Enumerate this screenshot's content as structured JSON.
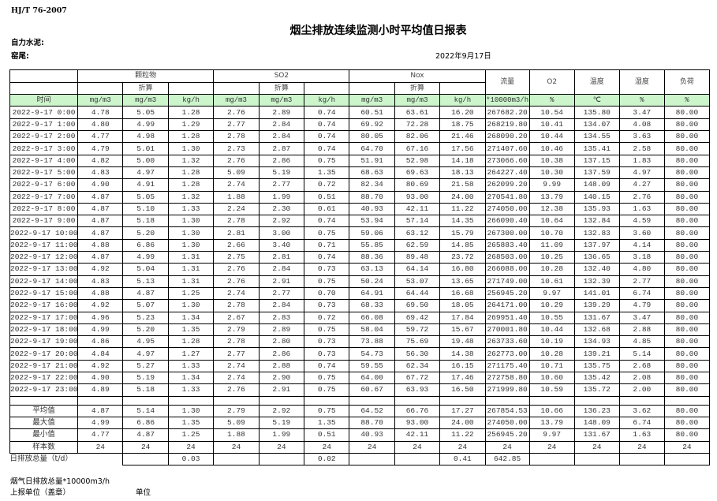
{
  "header": {
    "standard": "HJ/T  76-2007",
    "title": "烟尘排放连续监测小时平均值日报表",
    "company": "自力水泥:",
    "kiln": "窑尾:",
    "date": "2022年9月17日"
  },
  "table": {
    "groups": [
      "颗粒物",
      "SO2",
      "Nox"
    ],
    "converted_label": "折算",
    "single_headers": [
      "流量",
      "O2",
      "温度",
      "湿度",
      "负荷"
    ],
    "units": [
      "时间",
      "mg/m3",
      "mg/m3",
      "kg/h",
      "mg/m3",
      "mg/m3",
      "kg/h",
      "mg/m3",
      "mg/m3",
      "kg/h",
      "*10000m3/h",
      "%",
      "℃",
      "%",
      "%"
    ],
    "accent_color": "#ccf5cc",
    "rows": [
      [
        "2022-9-17  0:00",
        "4.78",
        "5.05",
        "1.28",
        "2.76",
        "2.89",
        "0.74",
        "60.51",
        "63.61",
        "16.20",
        "267682.20",
        "10.54",
        "135.80",
        "3.47",
        "80.00"
      ],
      [
        "2022-9-17  1:00",
        "4.80",
        "4.99",
        "1.29",
        "2.77",
        "2.84",
        "0.74",
        "69.92",
        "72.28",
        "18.75",
        "268219.80",
        "10.41",
        "134.07",
        "4.08",
        "80.00"
      ],
      [
        "2022-9-17  2:00",
        "4.77",
        "4.98",
        "1.28",
        "2.78",
        "2.84",
        "0.74",
        "80.05",
        "82.06",
        "21.46",
        "268090.20",
        "10.44",
        "134.55",
        "3.63",
        "80.00"
      ],
      [
        "2022-9-17  3:00",
        "4.79",
        "5.01",
        "1.30",
        "2.73",
        "2.87",
        "0.74",
        "64.70",
        "67.16",
        "17.56",
        "271407.60",
        "10.46",
        "135.41",
        "2.58",
        "80.00"
      ],
      [
        "2022-9-17  4:00",
        "4.82",
        "5.00",
        "1.32",
        "2.76",
        "2.86",
        "0.75",
        "51.91",
        "52.98",
        "14.18",
        "273066.60",
        "10.38",
        "137.15",
        "1.83",
        "80.00"
      ],
      [
        "2022-9-17  5:00",
        "4.83",
        "4.97",
        "1.28",
        "5.09",
        "5.19",
        "1.35",
        "68.63",
        "69.63",
        "18.13",
        "264227.40",
        "10.30",
        "137.59",
        "4.97",
        "80.00"
      ],
      [
        "2022-9-17  6:00",
        "4.90",
        "4.91",
        "1.28",
        "2.74",
        "2.77",
        "0.72",
        "82.34",
        "80.69",
        "21.58",
        "262099.20",
        "9.99",
        "148.09",
        "4.27",
        "80.00"
      ],
      [
        "2022-9-17  7:00",
        "4.87",
        "5.05",
        "1.32",
        "1.88",
        "1.99",
        "0.51",
        "88.70",
        "93.00",
        "24.00",
        "270541.80",
        "13.79",
        "140.15",
        "2.76",
        "80.00"
      ],
      [
        "2022-9-17  8:00",
        "4.87",
        "5.10",
        "1.33",
        "2.24",
        "2.30",
        "0.61",
        "40.93",
        "42.11",
        "11.22",
        "274050.00",
        "12.38",
        "135.93",
        "1.63",
        "80.00"
      ],
      [
        "2022-9-17  9:00",
        "4.87",
        "5.18",
        "1.30",
        "2.78",
        "2.92",
        "0.74",
        "53.94",
        "57.14",
        "14.35",
        "266090.40",
        "10.64",
        "132.84",
        "4.59",
        "80.00"
      ],
      [
        "2022-9-17 10:00",
        "4.87",
        "5.20",
        "1.30",
        "2.81",
        "3.00",
        "0.75",
        "59.06",
        "63.12",
        "15.79",
        "267300.00",
        "10.70",
        "132.83",
        "3.60",
        "80.00"
      ],
      [
        "2022-9-17 11:00",
        "4.88",
        "6.86",
        "1.30",
        "2.66",
        "3.40",
        "0.71",
        "55.85",
        "62.59",
        "14.85",
        "265883.40",
        "11.09",
        "137.97",
        "4.14",
        "80.00"
      ],
      [
        "2022-9-17 12:00",
        "4.87",
        "4.99",
        "1.31",
        "2.75",
        "2.81",
        "0.74",
        "88.36",
        "89.48",
        "23.72",
        "268503.00",
        "10.25",
        "136.65",
        "3.18",
        "80.00"
      ],
      [
        "2022-9-17 13:00",
        "4.92",
        "5.04",
        "1.31",
        "2.76",
        "2.84",
        "0.73",
        "63.13",
        "64.14",
        "16.80",
        "266088.00",
        "10.28",
        "132.40",
        "4.80",
        "80.00"
      ],
      [
        "2022-9-17 14:00",
        "4.83",
        "5.13",
        "1.31",
        "2.76",
        "2.91",
        "0.75",
        "50.24",
        "53.07",
        "13.65",
        "271749.00",
        "10.61",
        "132.39",
        "2.77",
        "80.00"
      ],
      [
        "2022-9-17 15:00",
        "4.88",
        "4.87",
        "1.25",
        "2.74",
        "2.77",
        "0.70",
        "64.91",
        "64.44",
        "16.68",
        "256945.20",
        "9.97",
        "141.01",
        "6.74",
        "80.00"
      ],
      [
        "2022-9-17 16:00",
        "4.92",
        "5.07",
        "1.30",
        "2.78",
        "2.84",
        "0.73",
        "68.33",
        "69.50",
        "18.05",
        "264171.00",
        "10.29",
        "139.29",
        "4.79",
        "80.00"
      ],
      [
        "2022-9-17 17:00",
        "4.96",
        "5.23",
        "1.34",
        "2.67",
        "2.83",
        "0.72",
        "66.08",
        "69.42",
        "17.84",
        "269951.40",
        "10.55",
        "131.67",
        "3.47",
        "80.00"
      ],
      [
        "2022-9-17 18:00",
        "4.99",
        "5.20",
        "1.35",
        "2.79",
        "2.89",
        "0.75",
        "58.04",
        "59.72",
        "15.67",
        "270001.80",
        "10.44",
        "132.68",
        "2.88",
        "80.00"
      ],
      [
        "2022-9-17 19:00",
        "4.86",
        "4.95",
        "1.28",
        "2.78",
        "2.80",
        "0.73",
        "73.88",
        "75.69",
        "19.48",
        "263733.60",
        "10.19",
        "134.93",
        "4.85",
        "80.00"
      ],
      [
        "2022-9-17 20:00",
        "4.84",
        "4.97",
        "1.27",
        "2.77",
        "2.86",
        "0.73",
        "54.73",
        "56.30",
        "14.38",
        "262773.00",
        "10.28",
        "139.21",
        "5.14",
        "80.00"
      ],
      [
        "2022-9-17 21:00",
        "4.92",
        "5.27",
        "1.33",
        "2.74",
        "2.88",
        "0.74",
        "59.55",
        "62.34",
        "16.15",
        "271175.40",
        "10.71",
        "135.75",
        "2.68",
        "80.00"
      ],
      [
        "2022-9-17 22:00",
        "4.90",
        "5.19",
        "1.34",
        "2.74",
        "2.90",
        "0.75",
        "64.00",
        "67.72",
        "17.46",
        "272758.80",
        "10.60",
        "135.42",
        "2.08",
        "80.00"
      ],
      [
        "2022-9-17 23:00",
        "4.89",
        "5.18",
        "1.33",
        "2.76",
        "2.91",
        "0.75",
        "60.67",
        "63.93",
        "16.50",
        "271999.80",
        "10.59",
        "135.72",
        "2.00",
        "80.00"
      ]
    ],
    "summary": [
      [
        "平均值",
        "4.87",
        "5.14",
        "1.30",
        "2.79",
        "2.92",
        "0.75",
        "64.52",
        "66.76",
        "17.27",
        "267854.53",
        "10.66",
        "136.23",
        "3.62",
        "80.00"
      ],
      [
        "最大值",
        "4.99",
        "6.86",
        "1.35",
        "5.09",
        "5.19",
        "1.35",
        "88.70",
        "93.00",
        "24.00",
        "274050.00",
        "13.79",
        "148.09",
        "6.74",
        "80.00"
      ],
      [
        "最小值",
        "4.77",
        "4.87",
        "1.25",
        "1.88",
        "1.99",
        "0.51",
        "40.93",
        "42.11",
        "11.22",
        "256945.20",
        "9.97",
        "131.67",
        "1.63",
        "80.00"
      ],
      [
        "样本数",
        "24",
        "24",
        "24",
        "24",
        "24",
        "24",
        "24",
        "24",
        "24",
        "24",
        "24",
        "24",
        "24",
        "24"
      ]
    ],
    "total": {
      "label": "日排放总量（t/d）",
      "values": [
        "",
        "0.03",
        "",
        "",
        "0.02",
        "",
        "",
        "0.41",
        "642.85",
        "",
        "",
        "",
        ""
      ]
    }
  },
  "footer": {
    "flue_total": "烟气日排放总量*10000m3/h",
    "reporting_unit": "上报单位（盖章）",
    "unit": "单位"
  }
}
